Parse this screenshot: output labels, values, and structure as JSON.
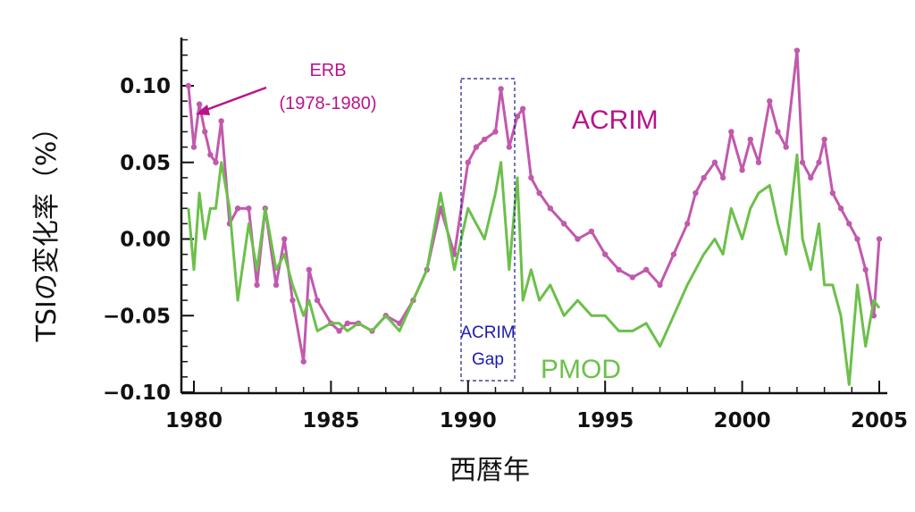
{
  "chart_data": {
    "type": "line",
    "title": "",
    "xlabel": "西暦年",
    "ylabel": "TSIの変化率（%）",
    "xlim": [
      1979.8,
      2005.2
    ],
    "ylim": [
      -0.1,
      0.13
    ],
    "x_ticks": [
      1980,
      1985,
      1990,
      1995,
      2000,
      2005
    ],
    "x_tick_labels": [
      "1980",
      "1985",
      "1990",
      "1995",
      "2000",
      "2005"
    ],
    "y_ticks": [
      -0.1,
      -0.05,
      0.0,
      0.05,
      0.1
    ],
    "y_tick_labels": [
      "−0.10",
      "−0.05",
      "0.00",
      "0.05",
      "0.10"
    ],
    "grid": false,
    "series": [
      {
        "name": "ACRIM",
        "color": "#c159ad",
        "markers": true,
        "x": [
          1979.8,
          1980.0,
          1980.2,
          1980.4,
          1980.6,
          1980.8,
          1981.0,
          1981.3,
          1981.6,
          1982.0,
          1982.3,
          1982.6,
          1983.0,
          1983.3,
          1983.6,
          1984.0,
          1984.2,
          1984.5,
          1985.0,
          1985.3,
          1985.6,
          1986.0,
          1986.5,
          1987.0,
          1987.5,
          1988.0,
          1988.5,
          1989.0,
          1989.5,
          1990.0,
          1990.3,
          1990.6,
          1991.0,
          1991.2,
          1991.5,
          1991.8,
          1992.0,
          1992.3,
          1992.6,
          1993.0,
          1993.5,
          1994.0,
          1994.5,
          1995.0,
          1995.5,
          1996.0,
          1996.5,
          1997.0,
          1997.5,
          1998.0,
          1998.3,
          1998.6,
          1999.0,
          1999.3,
          1999.6,
          2000.0,
          2000.3,
          2000.6,
          2001.0,
          2001.3,
          2001.6,
          2002.0,
          2002.2,
          2002.5,
          2002.8,
          2003.0,
          2003.3,
          2003.6,
          2003.9,
          2004.2,
          2004.5,
          2004.8,
          2005.0
        ],
        "values": [
          0.1,
          0.06,
          0.088,
          0.07,
          0.055,
          0.05,
          0.077,
          0.01,
          0.02,
          0.02,
          -0.03,
          0.02,
          -0.03,
          0.0,
          -0.04,
          -0.08,
          -0.02,
          -0.04,
          -0.055,
          -0.06,
          -0.055,
          -0.055,
          -0.06,
          -0.05,
          -0.055,
          -0.04,
          -0.02,
          0.02,
          -0.01,
          0.05,
          0.06,
          0.065,
          0.07,
          0.098,
          0.06,
          0.08,
          0.085,
          0.04,
          0.03,
          0.02,
          0.01,
          0.0,
          0.005,
          -0.01,
          -0.02,
          -0.025,
          -0.02,
          -0.03,
          -0.01,
          0.01,
          0.03,
          0.04,
          0.05,
          0.04,
          0.07,
          0.045,
          0.065,
          0.05,
          0.09,
          0.07,
          0.06,
          0.123,
          0.05,
          0.04,
          0.05,
          0.065,
          0.03,
          0.02,
          0.01,
          0.0,
          -0.02,
          -0.05,
          0.0
        ]
      },
      {
        "name": "PMOD",
        "color": "#6cc04a",
        "markers": false,
        "x": [
          1979.8,
          1980.0,
          1980.2,
          1980.4,
          1980.6,
          1980.8,
          1981.0,
          1981.3,
          1981.6,
          1982.0,
          1982.3,
          1982.6,
          1983.0,
          1983.3,
          1983.6,
          1984.0,
          1984.2,
          1984.5,
          1985.0,
          1985.3,
          1985.6,
          1986.0,
          1986.5,
          1987.0,
          1987.5,
          1988.0,
          1988.5,
          1989.0,
          1989.5,
          1990.0,
          1990.3,
          1990.6,
          1991.0,
          1991.2,
          1991.5,
          1991.8,
          1992.0,
          1992.3,
          1992.6,
          1993.0,
          1993.5,
          1994.0,
          1994.5,
          1995.0,
          1995.5,
          1996.0,
          1996.5,
          1997.0,
          1997.5,
          1998.0,
          1998.3,
          1998.6,
          1999.0,
          1999.3,
          1999.6,
          2000.0,
          2000.3,
          2000.6,
          2001.0,
          2001.3,
          2001.6,
          2002.0,
          2002.2,
          2002.5,
          2002.8,
          2003.0,
          2003.3,
          2003.6,
          2003.9,
          2004.2,
          2004.5,
          2004.8,
          2005.0
        ],
        "values": [
          0.02,
          -0.02,
          0.03,
          0.0,
          0.02,
          0.02,
          0.05,
          0.02,
          -0.04,
          0.01,
          -0.02,
          0.02,
          -0.02,
          -0.01,
          -0.03,
          -0.05,
          -0.04,
          -0.06,
          -0.055,
          -0.055,
          -0.06,
          -0.055,
          -0.06,
          -0.05,
          -0.06,
          -0.04,
          -0.02,
          0.03,
          -0.02,
          0.02,
          0.01,
          0.0,
          0.03,
          0.05,
          -0.02,
          0.04,
          -0.04,
          -0.02,
          -0.04,
          -0.03,
          -0.05,
          -0.04,
          -0.05,
          -0.05,
          -0.06,
          -0.06,
          -0.055,
          -0.07,
          -0.05,
          -0.03,
          -0.02,
          -0.01,
          0.0,
          -0.01,
          0.02,
          0.0,
          0.02,
          0.03,
          0.035,
          0.01,
          -0.01,
          0.055,
          0.0,
          -0.02,
          0.01,
          -0.03,
          -0.03,
          -0.05,
          -0.095,
          -0.03,
          -0.07,
          -0.04,
          -0.045
        ]
      }
    ],
    "annotations": [
      {
        "text": "ERB",
        "text2": "(1978-1980)",
        "color": "#b8138b"
      },
      {
        "text": "ACRIM",
        "color": "#b8138b"
      },
      {
        "text": "PMOD",
        "color": "#6cc04a"
      },
      {
        "text": "ACRIM",
        "text2": "Gap",
        "color": "#1a1ab3"
      }
    ]
  }
}
